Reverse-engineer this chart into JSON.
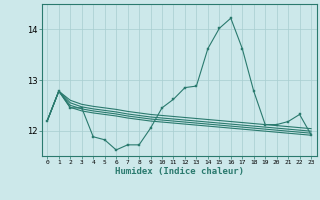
{
  "xlabel": "Humidex (Indice chaleur)",
  "x_values": [
    0,
    1,
    2,
    3,
    4,
    5,
    6,
    7,
    8,
    9,
    10,
    11,
    12,
    13,
    14,
    15,
    16,
    17,
    18,
    19,
    20,
    21,
    22,
    23
  ],
  "main_line": [
    12.2,
    12.78,
    12.45,
    12.45,
    11.88,
    11.82,
    11.62,
    11.72,
    11.72,
    12.05,
    12.45,
    12.62,
    12.85,
    12.88,
    13.62,
    14.02,
    14.22,
    13.62,
    12.78,
    12.12,
    12.12,
    12.18,
    12.32,
    11.92
  ],
  "stat_line1": [
    12.2,
    12.78,
    12.6,
    12.52,
    12.48,
    12.45,
    12.42,
    12.38,
    12.35,
    12.32,
    12.3,
    12.28,
    12.26,
    12.24,
    12.22,
    12.2,
    12.18,
    12.16,
    12.14,
    12.12,
    12.1,
    12.08,
    12.06,
    12.04
  ],
  "stat_line2": [
    12.2,
    12.78,
    12.55,
    12.47,
    12.43,
    12.4,
    12.37,
    12.33,
    12.3,
    12.27,
    12.25,
    12.23,
    12.21,
    12.19,
    12.17,
    12.15,
    12.13,
    12.11,
    12.09,
    12.07,
    12.05,
    12.03,
    12.01,
    11.99
  ],
  "stat_line3": [
    12.2,
    12.78,
    12.5,
    12.43,
    12.39,
    12.36,
    12.33,
    12.29,
    12.26,
    12.23,
    12.21,
    12.19,
    12.17,
    12.15,
    12.13,
    12.11,
    12.09,
    12.07,
    12.05,
    12.03,
    12.01,
    11.99,
    11.97,
    11.95
  ],
  "stat_line4": [
    12.2,
    12.78,
    12.46,
    12.39,
    12.35,
    12.32,
    12.29,
    12.25,
    12.22,
    12.19,
    12.17,
    12.15,
    12.13,
    12.11,
    12.09,
    12.07,
    12.05,
    12.03,
    12.01,
    11.99,
    11.97,
    11.95,
    11.93,
    11.91
  ],
  "line_color": "#2a7a6e",
  "bg_color": "#cce8ea",
  "grid_color": "#a8ced0",
  "ylim": [
    11.5,
    14.5
  ],
  "xlim": [
    -0.5,
    23.5
  ],
  "yticks": [
    12,
    13,
    14
  ],
  "xticks": [
    0,
    1,
    2,
    3,
    4,
    5,
    6,
    7,
    8,
    9,
    10,
    11,
    12,
    13,
    14,
    15,
    16,
    17,
    18,
    19,
    20,
    21,
    22,
    23
  ]
}
